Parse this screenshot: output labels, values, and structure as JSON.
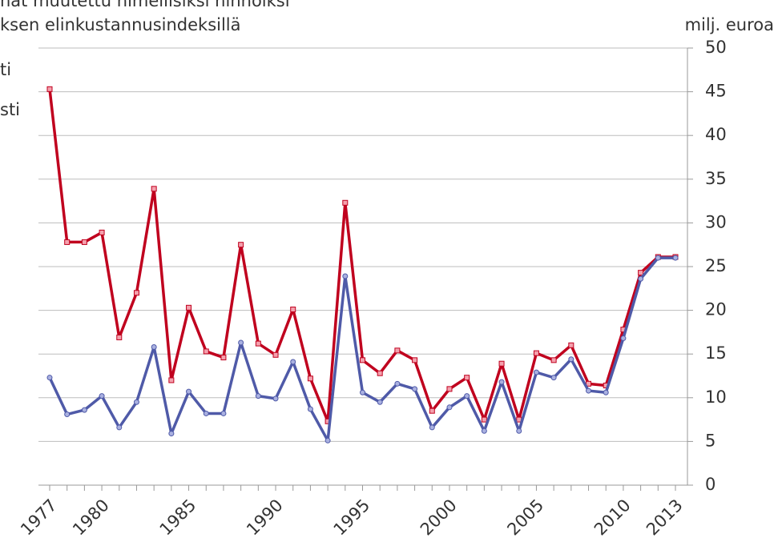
{
  "chart_data": {
    "type": "line",
    "title": "hat muutettu nimellisiksi hinnoiksi",
    "subtitle": "ksen  elinkustannusindeksillä",
    "y_label": "milj. euroa",
    "x": [
      1977,
      1978,
      1979,
      1980,
      1981,
      1982,
      1983,
      1984,
      1985,
      1986,
      1987,
      1988,
      1989,
      1990,
      1991,
      1992,
      1993,
      1994,
      1995,
      1996,
      1997,
      1998,
      1999,
      2000,
      2001,
      2002,
      2003,
      2004,
      2005,
      2006,
      2007,
      2008,
      2009,
      2010,
      2011,
      2012,
      2013
    ],
    "xlim": [
      1977,
      2013
    ],
    "xticks": [
      1977,
      1980,
      1985,
      1990,
      1995,
      2000,
      2005,
      2010,
      2013
    ],
    "ylim": [
      0,
      50
    ],
    "yticks": [
      0,
      5,
      10,
      15,
      20,
      25,
      30,
      35,
      40,
      45,
      50
    ],
    "grid": true,
    "series": [
      {
        "name": "ti",
        "color": "#c0001e",
        "marker": "square",
        "values": [
          45.3,
          27.8,
          27.8,
          28.9,
          16.9,
          22.0,
          33.9,
          12.0,
          20.3,
          15.3,
          14.6,
          27.5,
          16.2,
          14.9,
          20.1,
          12.2,
          7.3,
          32.3,
          14.3,
          12.8,
          15.4,
          14.3,
          8.5,
          11.0,
          12.3,
          7.5,
          13.9,
          7.5,
          15.1,
          14.3,
          16.0,
          11.6,
          11.4,
          17.8,
          24.3,
          26.1,
          26.1
        ]
      },
      {
        "name": "sti",
        "color": "#4f5aa8",
        "marker": "circle",
        "values": [
          12.3,
          8.1,
          8.6,
          10.2,
          6.6,
          9.5,
          15.8,
          5.9,
          10.7,
          8.2,
          8.2,
          16.3,
          10.2,
          9.9,
          14.1,
          8.7,
          5.1,
          23.9,
          10.6,
          9.5,
          11.6,
          11.0,
          6.6,
          8.9,
          10.2,
          6.2,
          11.8,
          6.2,
          12.9,
          12.3,
          14.4,
          10.8,
          10.6,
          16.8,
          23.6,
          26.0,
          26.0
        ]
      }
    ]
  }
}
